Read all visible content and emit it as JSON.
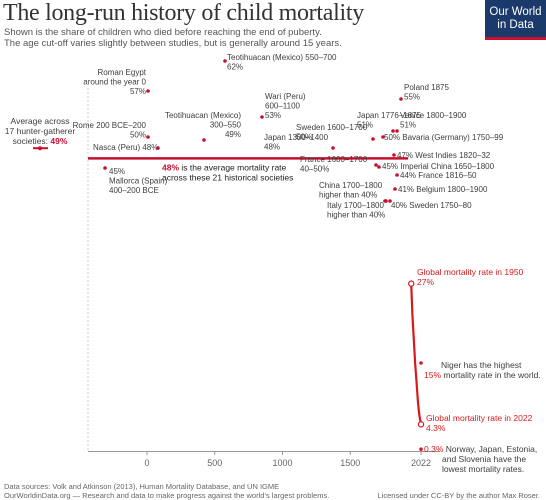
{
  "header": {
    "title": "The long-run history of child mortality",
    "subtitle_line1": "Shown is the share of children who died before reaching the end of puberty.",
    "subtitle_line2": "The age cut-off varies slightly between studies, but is generally around 15 years.",
    "logo_line1": "Our World",
    "logo_line2": "in Data"
  },
  "footer": {
    "sources": "Data sources: Volk and Atkinson (2013), Human Mortality Database, and UN IGME",
    "credit": "OurWorldinData.org — Research and data to make progress against the world’s largest problems.",
    "license": "Licensed under CC-BY by the author Max Roser."
  },
  "colors": {
    "historical": "#c8102e",
    "global": "#d7191c",
    "text": "#3d3d3d",
    "axis": "#999999",
    "logo_bg": "#1a3a6b"
  },
  "chart_data": {
    "type": "scatter",
    "x_axis": {
      "ticks": [
        "0",
        "500",
        "1000",
        "1500",
        "2022"
      ],
      "min": -400,
      "max": 2022
    },
    "y_axis": {
      "min": 0,
      "max": 62
    },
    "grid": false,
    "hunter_gatherer": {
      "lines": [
        "Average across",
        "17 hunter-gatherer",
        "societies: 49%"
      ],
      "value": 49
    },
    "average": {
      "value": 48,
      "lines": [
        "48% is the average mortality rate",
        "across these 21 historical societies"
      ]
    },
    "historical_points": [
      {
        "id": "teotihuacan-550",
        "x": 625,
        "y": 62,
        "lines": [
          "Teotihuacan (Mexico) 550–700",
          "62%"
        ]
      },
      {
        "id": "roman-egypt",
        "x": 0,
        "y": 57,
        "lines": [
          "Roman Egypt",
          "around the year 0",
          "57%"
        ]
      },
      {
        "id": "poland-1875",
        "x": 1875,
        "y": 55,
        "lines": [
          "Poland 1875",
          "55%"
        ]
      },
      {
        "id": "wari-peru",
        "x": 850,
        "y": 53,
        "lines": [
          "Wari (Peru)",
          "600–1100",
          "53%"
        ]
      },
      {
        "id": "teotihuacan-300",
        "x": 425,
        "y": 49,
        "lines": [
          "Teotihuacan (Mexico)",
          "300–550",
          "49%"
        ]
      },
      {
        "id": "japan-1776",
        "x": 1825,
        "y": 51,
        "lines": [
          "Japan 1776–1875",
          "51%"
        ]
      },
      {
        "id": "venice",
        "x": 1850,
        "y": 51,
        "lines": [
          "Venice 1800–1900",
          "51%"
        ]
      },
      {
        "id": "rome-200",
        "x": 0,
        "y": 50,
        "lines": [
          "Rome 200 BCE–200",
          "50%"
        ]
      },
      {
        "id": "sweden-1600",
        "x": 1650,
        "y": 50,
        "lines": [
          "Sweden 1600–1700",
          "50%"
        ]
      },
      {
        "id": "bavaria",
        "x": 1825,
        "y": 50,
        "lines": [
          "50% Bavaria (Germany) 1750–99"
        ]
      },
      {
        "id": "nasca",
        "x": 75,
        "y": 48,
        "lines": [
          "Nasca (Peru) 48%"
        ]
      },
      {
        "id": "japan-1300",
        "x": 1350,
        "y": 48,
        "lines": [
          "Japan 1300–1400",
          "48%"
        ]
      },
      {
        "id": "west-indies",
        "x": 1827,
        "y": 47,
        "lines": [
          "47% West Indies 1820–32"
        ]
      },
      {
        "id": "france-1600",
        "x": 1700,
        "y": 45,
        "lines": [
          "France 1600–1700",
          "40–50%"
        ]
      },
      {
        "id": "imperial-china",
        "x": 1725,
        "y": 45,
        "lines": [
          "45% Imperial China 1650–1800"
        ]
      },
      {
        "id": "mallorca",
        "x": -300,
        "y": 45,
        "lines": [
          "45%",
          "Mallorca (Spain)",
          "400–200 BCE"
        ]
      },
      {
        "id": "france-1816",
        "x": 1833,
        "y": 44,
        "lines": [
          "44% France 1816–50"
        ]
      },
      {
        "id": "belgium",
        "x": 1850,
        "y": 41,
        "lines": [
          "41% Belgium 1800–1900"
        ]
      },
      {
        "id": "china-1700",
        "x": 1750,
        "y": 40,
        "lines": [
          "China 1700–1800",
          "higher than 40%"
        ]
      },
      {
        "id": "italy-1700",
        "x": 1750,
        "y": 40,
        "lines": [
          "Italy 1700–1800",
          "higher than 40%"
        ]
      },
      {
        "id": "sweden-1750",
        "x": 1775,
        "y": 40,
        "lines": [
          "40% Sweden 1750–80"
        ]
      }
    ],
    "global_series": {
      "name": "Global mortality rate",
      "points": [
        {
          "x": 1950,
          "y": 27
        },
        {
          "x": 1960,
          "y": 22
        },
        {
          "x": 1970,
          "y": 18
        },
        {
          "x": 1980,
          "y": 14
        },
        {
          "x": 1990,
          "y": 11
        },
        {
          "x": 2000,
          "y": 8
        },
        {
          "x": 2010,
          "y": 5.8
        },
        {
          "x": 2022,
          "y": 4.3
        }
      ]
    },
    "global_labels": [
      {
        "id": "global-1950",
        "x": 1950,
        "y": 27,
        "lines": [
          "Global mortality rate in 1950",
          "27%"
        ]
      },
      {
        "id": "global-2022",
        "x": 2022,
        "y": 4.3,
        "lines": [
          "Global mortality rate in 2022",
          "4.3%"
        ]
      }
    ],
    "niger": {
      "x": 2022,
      "y": 15,
      "value_label": "15%",
      "lines": [
        "Niger has the highest",
        "mortality rate in the world."
      ]
    },
    "lowest": {
      "x": 2022,
      "y": 0.3,
      "value_label": "0.3%",
      "lines": [
        "Norway, Japan, Estonia,",
        "and Slovenia have the",
        "lowest mortality rates."
      ]
    }
  }
}
